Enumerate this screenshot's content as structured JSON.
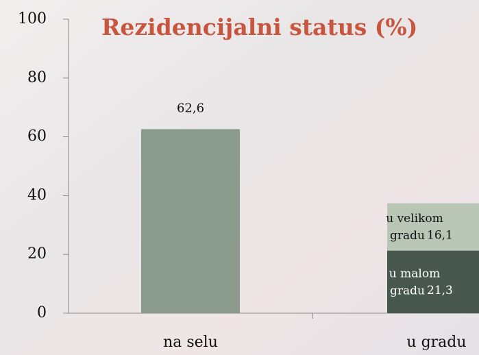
{
  "chart_data": {
    "type": "stacked_bar",
    "title": "Rezidencijalni status (%)",
    "categories": [
      "na selu",
      "u gradu"
    ],
    "series": [
      {
        "color": "#8a9b8d",
        "values": [
          62.6,
          null
        ],
        "value_labels": [
          "62,6",
          null
        ]
      },
      {
        "name": "u malom gradu",
        "color": "#48574d",
        "values": [
          null,
          21.3
        ],
        "value_labels": [
          null,
          "21,3"
        ]
      },
      {
        "name": "u velikom gradu",
        "color": "#b9c6b6",
        "values": [
          null,
          16.1
        ],
        "value_labels": [
          null,
          "16,1"
        ]
      }
    ],
    "ylim": [
      0,
      100
    ],
    "yticks": [
      0,
      20,
      40,
      60,
      80,
      100
    ],
    "grid": false
  }
}
